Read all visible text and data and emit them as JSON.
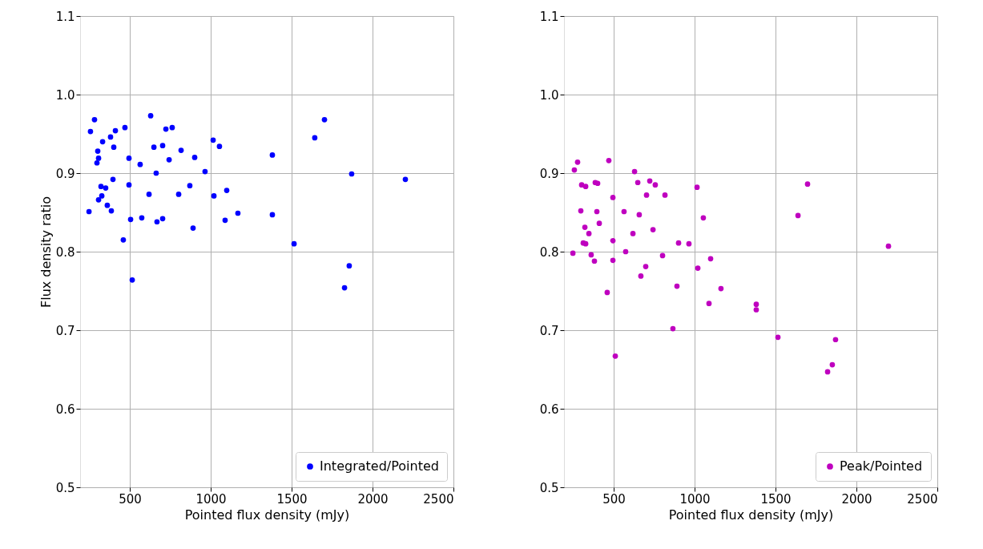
{
  "chart_data": [
    {
      "type": "scatter",
      "xlabel": "Pointed flux density (mJy)",
      "ylabel": "Flux density ratio",
      "x": [
        282,
        257,
        411,
        470,
        629,
        723,
        762,
        332,
        381,
        401,
        302,
        307,
        297,
        495,
        564,
        649,
        703,
        817,
        743,
        901,
        1015,
        1054,
        965,
        663,
        396,
        322,
        351,
        327,
        307,
        495,
        619,
        871,
        802,
        1020,
        1099,
        248,
        361,
        386,
        505,
        574,
        668,
        703,
        891,
        1089,
        1168,
        460,
        515,
        1703,
        1643,
        1381,
        1871,
        2203,
        1381,
        1515,
        1856,
        1827
      ],
      "series": [
        {
          "name": "Integrated/Pointed",
          "color": "#0000ff",
          "values": [
            0.968,
            0.953,
            0.954,
            0.958,
            0.973,
            0.956,
            0.958,
            0.94,
            0.946,
            0.933,
            0.928,
            0.919,
            0.913,
            0.919,
            0.911,
            0.933,
            0.935,
            0.929,
            0.917,
            0.92,
            0.942,
            0.934,
            0.902,
            0.9,
            0.892,
            0.883,
            0.881,
            0.871,
            0.866,
            0.885,
            0.873,
            0.884,
            0.873,
            0.871,
            0.878,
            0.851,
            0.859,
            0.852,
            0.841,
            0.843,
            0.838,
            0.842,
            0.83,
            0.84,
            0.849,
            0.815,
            0.764,
            0.968,
            0.945,
            0.923,
            0.899,
            0.892,
            0.847,
            0.81,
            0.782,
            0.754
          ]
        }
      ],
      "xlim": [
        193,
        2500
      ],
      "ylim": [
        0.5,
        1.1
      ],
      "xticks": [
        500,
        1000,
        1500,
        2000,
        2500
      ],
      "yticks": [
        {
          "value": 0.5,
          "label": "0.5"
        },
        {
          "value": 0.6,
          "label": "0.6"
        },
        {
          "value": 0.7,
          "label": "0.7"
        },
        {
          "value": 0.8,
          "label": "0.8"
        },
        {
          "value": 0.9,
          "label": "0.9"
        },
        {
          "value": 1.0,
          "label": "1.0"
        },
        {
          "value": 1.1,
          "label": "1.1"
        }
      ],
      "grid": true,
      "legend": "bottom right",
      "marker": "circle"
    },
    {
      "type": "scatter",
      "xlabel": "Pointed flux density (mJy)",
      "x": [
        277,
        257,
        470,
        629,
        302,
        327,
        386,
        401,
        649,
        723,
        757,
        703,
        817,
        1015,
        495,
        297,
        396,
        564,
        658,
        1054,
        322,
        411,
        347,
        619,
        743,
        312,
        327,
        495,
        901,
        965,
        248,
        574,
        361,
        381,
        495,
        802,
        1099,
        698,
        1020,
        668,
        891,
        1163,
        460,
        1089,
        866,
        510,
        1698,
        1639,
        2198,
        1381,
        1381,
        1515,
        1871,
        1851,
        1822
      ],
      "series": [
        {
          "name": "Peak/Pointed",
          "color": "#bf00bf",
          "values": [
            0.914,
            0.904,
            0.916,
            0.902,
            0.885,
            0.883,
            0.888,
            0.887,
            0.888,
            0.89,
            0.885,
            0.872,
            0.872,
            0.882,
            0.869,
            0.852,
            0.851,
            0.851,
            0.847,
            0.843,
            0.831,
            0.836,
            0.823,
            0.823,
            0.828,
            0.811,
            0.81,
            0.814,
            0.811,
            0.81,
            0.798,
            0.8,
            0.796,
            0.788,
            0.789,
            0.795,
            0.791,
            0.781,
            0.779,
            0.769,
            0.756,
            0.753,
            0.748,
            0.734,
            0.702,
            0.667,
            0.886,
            0.846,
            0.807,
            0.733,
            0.726,
            0.691,
            0.688,
            0.656,
            0.647
          ]
        }
      ],
      "xlim": [
        193,
        2500
      ],
      "ylim": [
        0.5,
        1.1
      ],
      "xticks": [
        500,
        1000,
        1500,
        2000,
        2500
      ],
      "yticks": [
        {
          "value": 0.5,
          "label": "0.5"
        },
        {
          "value": 0.6,
          "label": "0.6"
        },
        {
          "value": 0.7,
          "label": "0.7"
        },
        {
          "value": 0.8,
          "label": "0.8"
        },
        {
          "value": 0.9,
          "label": "0.9"
        },
        {
          "value": 1.0,
          "label": "1.0"
        },
        {
          "value": 1.1,
          "label": "1.1"
        }
      ],
      "grid": true,
      "legend": "bottom right",
      "marker": "circle"
    }
  ]
}
